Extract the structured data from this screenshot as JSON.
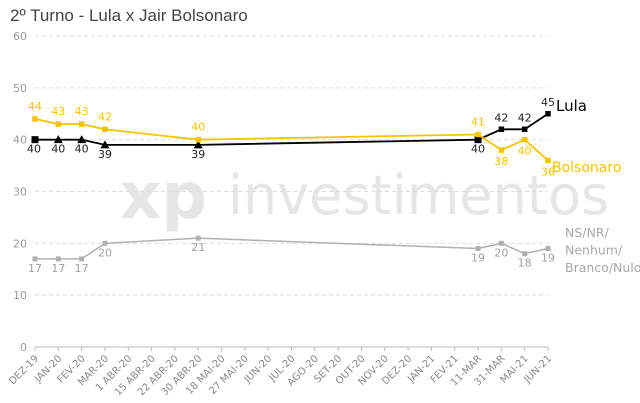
{
  "chart_data": {
    "type": "line",
    "title": "2º Turno - Lula x Jair Bolsonaro",
    "ylim": [
      0,
      60
    ],
    "yticks": [
      0,
      10,
      20,
      30,
      40,
      50,
      60
    ],
    "grid": true,
    "categories": [
      "DEZ-19",
      "JAN-20",
      "FEV-20",
      "MAR-20",
      "1 ABR-20",
      "15 ABR-20",
      "22 ABR-20",
      "30 ABR-20",
      "18 MAI-20",
      "27 MAI-20",
      "JUN-20",
      "JUL-20",
      "AGO-20",
      "SET-20",
      "OUT-20",
      "NOV-20",
      "DEZ-20",
      "JAN-21",
      "FEV-21",
      "11-MAR",
      "31-MAR",
      "MAI-21",
      "JUN-21"
    ],
    "series": [
      {
        "name": "Lula",
        "color": "#000000",
        "points": [
          {
            "x": "DEZ-19",
            "y": 40,
            "label": "40",
            "marker": "square"
          },
          {
            "x": "JAN-20",
            "y": 40,
            "label": "40",
            "marker": "triangle"
          },
          {
            "x": "FEV-20",
            "y": 40,
            "label": "40",
            "marker": "triangle"
          },
          {
            "x": "MAR-20",
            "y": 39,
            "label": "39",
            "marker": "triangle"
          },
          {
            "x": "30 ABR-20",
            "y": 39,
            "label": "39",
            "marker": "triangle"
          },
          {
            "x": "11-MAR",
            "y": 40,
            "label": "40",
            "marker": "square"
          },
          {
            "x": "31-MAR",
            "y": 42,
            "label": "42",
            "marker": "square"
          },
          {
            "x": "MAI-21",
            "y": 42,
            "label": "42",
            "marker": "square"
          },
          {
            "x": "JUN-21",
            "y": 45,
            "label": "45",
            "marker": "square"
          }
        ]
      },
      {
        "name": "Bolsonaro",
        "color": "#f5c400",
        "points": [
          {
            "x": "DEZ-19",
            "y": 44,
            "label": "44",
            "marker": "square"
          },
          {
            "x": "JAN-20",
            "y": 43,
            "label": "43",
            "marker": "square"
          },
          {
            "x": "FEV-20",
            "y": 43,
            "label": "43",
            "marker": "square"
          },
          {
            "x": "MAR-20",
            "y": 42,
            "label": "42",
            "marker": "square"
          },
          {
            "x": "30 ABR-20",
            "y": 40,
            "label": "40",
            "marker": "square"
          },
          {
            "x": "11-MAR",
            "y": 41,
            "label": "41",
            "marker": "square"
          },
          {
            "x": "31-MAR",
            "y": 38,
            "label": "38",
            "marker": "square"
          },
          {
            "x": "MAI-21",
            "y": 40,
            "label": "40",
            "marker": "square"
          },
          {
            "x": "JUN-21",
            "y": 36,
            "label": "36",
            "marker": "square"
          }
        ]
      },
      {
        "name": "NS/NR/ Nenhum/ Branco/Nulo",
        "name_lines": [
          "NS/NR/",
          "Nenhum/",
          "Branco/Nulo"
        ],
        "color": "#b0b0b0",
        "points": [
          {
            "x": "DEZ-19",
            "y": 17,
            "label": "17",
            "marker": "square"
          },
          {
            "x": "JAN-20",
            "y": 17,
            "label": "17",
            "marker": "square"
          },
          {
            "x": "FEV-20",
            "y": 17,
            "label": "17",
            "marker": "square"
          },
          {
            "x": "MAR-20",
            "y": 20,
            "label": "20",
            "marker": "square"
          },
          {
            "x": "30 ABR-20",
            "y": 21,
            "label": "21",
            "marker": "square"
          },
          {
            "x": "11-MAR",
            "y": 19,
            "label": "19",
            "marker": "square"
          },
          {
            "x": "31-MAR",
            "y": 20,
            "label": "20",
            "marker": "square"
          },
          {
            "x": "MAI-21",
            "y": 18,
            "label": "18",
            "marker": "square"
          },
          {
            "x": "JUN-21",
            "y": 19,
            "label": "19",
            "marker": "square"
          }
        ]
      }
    ]
  },
  "watermark": {
    "brand": "xp",
    "text": "investimentos",
    "color": "#e6e6e6"
  }
}
